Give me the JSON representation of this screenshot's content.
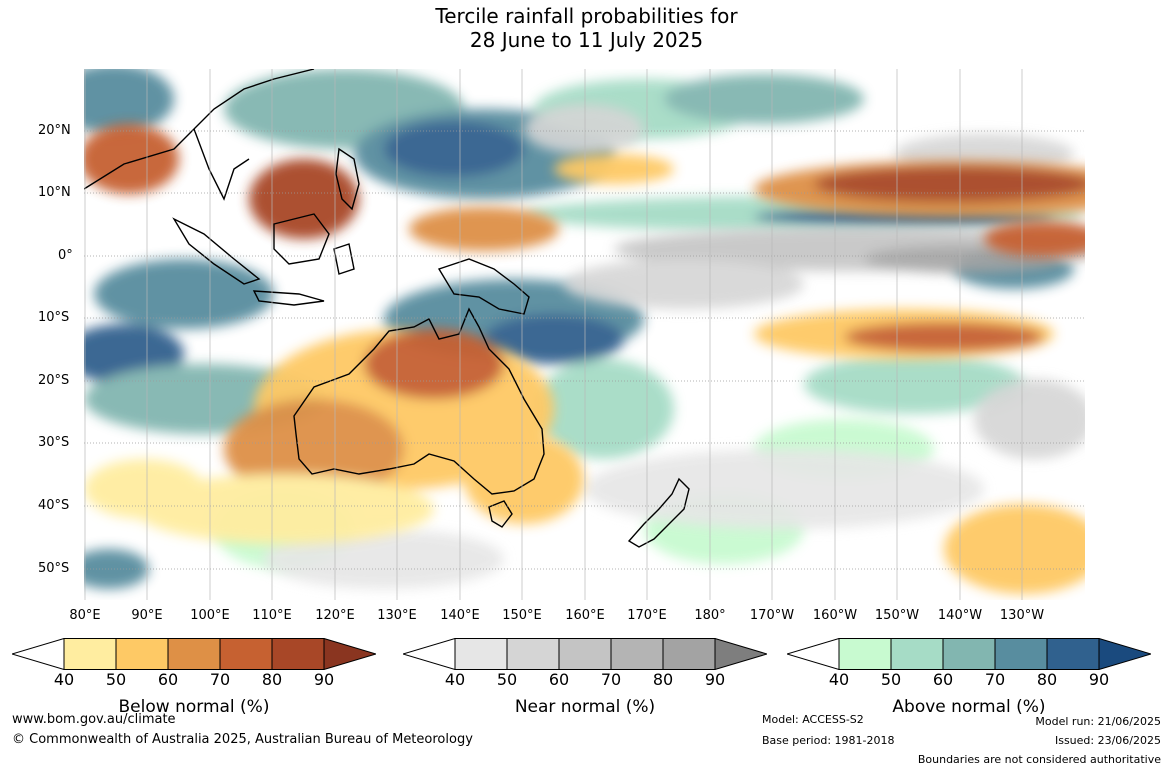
{
  "title": {
    "line1": "Tercile rainfall probabilities for",
    "line2": "28 June to 11 July 2025"
  },
  "map": {
    "lat_labels": [
      "20°N",
      "10°N",
      "0°",
      "10°S",
      "20°S",
      "30°S",
      "40°S",
      "50°S"
    ],
    "lon_labels": [
      "80°E",
      "90°E",
      "100°E",
      "110°E",
      "120°E",
      "130°E",
      "140°E",
      "150°E",
      "160°E",
      "170°E",
      "180°",
      "170°W",
      "160°W",
      "150°W",
      "140°W",
      "130°W"
    ],
    "ocean_color": "#ffffff",
    "grid_color": "#9a9a9a"
  },
  "colorbars": [
    {
      "label": "Below normal (%)",
      "ticks": [
        "40",
        "50",
        "60",
        "70",
        "80",
        "90"
      ],
      "colors": [
        "#ffeda0",
        "#fec965",
        "#de9046",
        "#c66131",
        "#a84727",
        "#8a3520"
      ]
    },
    {
      "label": "Near normal (%)",
      "ticks": [
        "40",
        "50",
        "60",
        "70",
        "80",
        "90"
      ],
      "colors": [
        "#e6e6e6",
        "#d5d5d5",
        "#c4c4c4",
        "#b4b4b4",
        "#a3a3a3",
        "#7e7e7e"
      ]
    },
    {
      "label": "Above normal (%)",
      "ticks": [
        "40",
        "50",
        "60",
        "70",
        "80",
        "90"
      ],
      "colors": [
        "#c8fad0",
        "#a6dcc6",
        "#82b6b0",
        "#588d9f",
        "#30618e",
        "#1a4a7e"
      ]
    }
  ],
  "footer": {
    "website": "www.bom.gov.au/climate",
    "copyright": "© Commonwealth of Australia 2025, Australian Bureau of Meteorology",
    "model": "Model: ACCESS-S2",
    "base_period": "Base period: 1981-2018",
    "model_run": "Model run: 21/06/2025",
    "issued": "Issued: 23/06/2025",
    "disclaimer": "Boundaries are not considered authoritative"
  }
}
